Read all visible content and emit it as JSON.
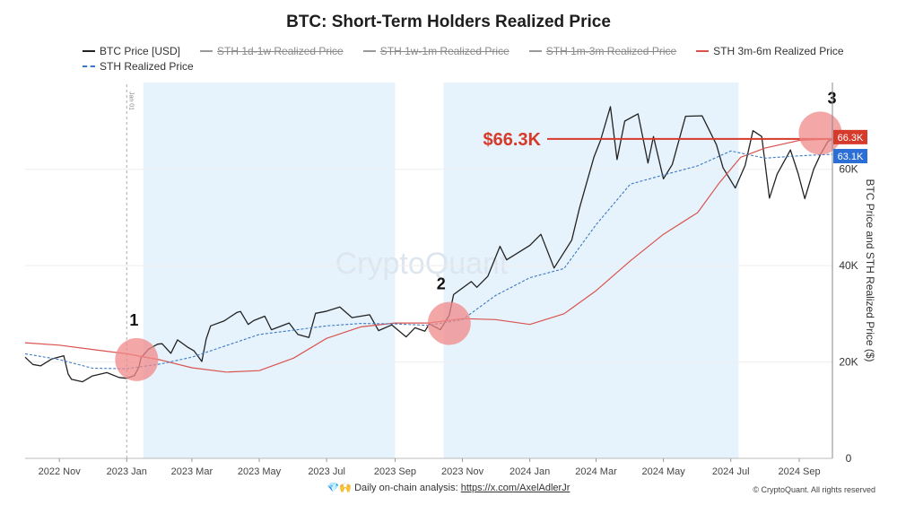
{
  "title": "BTC: Short-Term Holders Realized Price",
  "legend": [
    {
      "label": "BTC Price [USD]",
      "color": "#222222",
      "style": "solid",
      "active": true
    },
    {
      "label": "STH 1d-1w Realized Price",
      "color": "#9a9a9a",
      "style": "solid",
      "active": false
    },
    {
      "label": "STH 1w-1m Realized Price",
      "color": "#9a9a9a",
      "style": "solid",
      "active": false
    },
    {
      "label": "STH 1m-3m Realized Price",
      "color": "#9a9a9a",
      "style": "solid",
      "active": false
    },
    {
      "label": "STH 3m-6m Realized Price",
      "color": "#d9534f",
      "style": "solid",
      "active": true
    },
    {
      "label": "STH Realized Price",
      "color": "#3b78c2",
      "style": "dashed",
      "active": true
    }
  ],
  "watermark": "CryptoQuant",
  "markers": {
    "vline_label": "Jan 01",
    "circle_labels": [
      "1",
      "2",
      "3"
    ],
    "price_annotation": "$66.3K"
  },
  "footer": {
    "icons": "💎🙌",
    "text": "Daily on-chain analysis:",
    "link": "https://x.com/AxelAdlerJr",
    "copyright": "© CryptoQuant. All rights reserved"
  },
  "colors": {
    "btc": "#222222",
    "sth_3m_6m": "#d9534f",
    "sth": "#3b78c2",
    "shade": "#e6f3fc",
    "circle": "#f08a8a",
    "annotation": "#d63a2a",
    "tag_red": "#d63a2a",
    "tag_blue": "#2b6fd6"
  },
  "chart_data": {
    "type": "line",
    "title": "BTC: Short-Term Holders Realized Price",
    "xlabel": "",
    "ylabel": "BTC Price and STH Realized Price ($)",
    "x_range": [
      "2022-10-01",
      "2024-10-01"
    ],
    "ylim": [
      0,
      78000
    ],
    "yticks": [
      0,
      20000,
      40000,
      60000
    ],
    "ytick_labels": [
      "0",
      "20K",
      "40K",
      "60K"
    ],
    "xticks": [
      "2022-11-01",
      "2023-01-01",
      "2023-03-01",
      "2023-05-01",
      "2023-07-01",
      "2023-09-01",
      "2023-11-01",
      "2024-01-01",
      "2024-03-01",
      "2024-05-01",
      "2024-07-01",
      "2024-09-01"
    ],
    "xtick_labels": [
      "2022 Nov",
      "2023 Jan",
      "2023 Mar",
      "2023 May",
      "2023 Jul",
      "2023 Sep",
      "2023 Nov",
      "2024 Jan",
      "2024 Mar",
      "2024 May",
      "2024 Jul",
      "2024 Sep"
    ],
    "shaded_regions": [
      [
        "2023-01-16",
        "2023-09-01"
      ],
      [
        "2023-10-15",
        "2024-07-08"
      ]
    ],
    "vertical_line": "2023-01-01",
    "horizontal_line": 66300,
    "value_tags": [
      {
        "label": "66.3K",
        "value": 66300,
        "color": "#d63a2a"
      },
      {
        "label": "63.1K",
        "value": 63100,
        "color": "#2b6fd6"
      }
    ],
    "highlight_points": [
      {
        "label": "1",
        "date": "2023-01-10",
        "value": 20500
      },
      {
        "label": "2",
        "date": "2023-10-20",
        "value": 28000
      },
      {
        "label": "3",
        "date": "2024-09-20",
        "value": 67500
      }
    ],
    "series": [
      {
        "name": "BTC Price [USD]",
        "color": "#222222",
        "points": [
          [
            "2022-10-01",
            21000
          ],
          [
            "2022-10-08",
            19500
          ],
          [
            "2022-10-15",
            19200
          ],
          [
            "2022-10-25",
            20600
          ],
          [
            "2022-11-05",
            21300
          ],
          [
            "2022-11-09",
            17500
          ],
          [
            "2022-11-12",
            16400
          ],
          [
            "2022-11-22",
            15900
          ],
          [
            "2022-12-01",
            17100
          ],
          [
            "2022-12-14",
            17800
          ],
          [
            "2022-12-25",
            16800
          ],
          [
            "2023-01-01",
            16600
          ],
          [
            "2023-01-08",
            17200
          ],
          [
            "2023-01-12",
            18900
          ],
          [
            "2023-01-14",
            20900
          ],
          [
            "2023-01-21",
            22700
          ],
          [
            "2023-01-29",
            23700
          ],
          [
            "2023-02-02",
            23800
          ],
          [
            "2023-02-10",
            21800
          ],
          [
            "2023-02-16",
            24600
          ],
          [
            "2023-02-25",
            23100
          ],
          [
            "2023-03-03",
            22300
          ],
          [
            "2023-03-10",
            20100
          ],
          [
            "2023-03-14",
            24800
          ],
          [
            "2023-03-18",
            27500
          ],
          [
            "2023-03-30",
            28500
          ],
          [
            "2023-04-11",
            30300
          ],
          [
            "2023-04-14",
            30500
          ],
          [
            "2023-04-21",
            27800
          ],
          [
            "2023-04-26",
            28600
          ],
          [
            "2023-05-06",
            29500
          ],
          [
            "2023-05-12",
            26700
          ],
          [
            "2023-05-28",
            28100
          ],
          [
            "2023-06-05",
            25700
          ],
          [
            "2023-06-15",
            25100
          ],
          [
            "2023-06-21",
            30100
          ],
          [
            "2023-06-30",
            30500
          ],
          [
            "2023-07-13",
            31400
          ],
          [
            "2023-07-24",
            29200
          ],
          [
            "2023-08-09",
            29800
          ],
          [
            "2023-08-17",
            26500
          ],
          [
            "2023-08-29",
            27700
          ],
          [
            "2023-09-11",
            25200
          ],
          [
            "2023-09-19",
            27100
          ],
          [
            "2023-09-28",
            26400
          ],
          [
            "2023-10-02",
            27900
          ],
          [
            "2023-10-12",
            26700
          ],
          [
            "2023-10-20",
            29700
          ],
          [
            "2023-10-24",
            34000
          ],
          [
            "2023-11-09",
            36700
          ],
          [
            "2023-11-14",
            35500
          ],
          [
            "2023-11-24",
            37800
          ],
          [
            "2023-12-05",
            44000
          ],
          [
            "2023-12-11",
            41200
          ],
          [
            "2024-01-01",
            44200
          ],
          [
            "2024-01-11",
            46500
          ],
          [
            "2024-01-23",
            39500
          ],
          [
            "2024-02-08",
            45300
          ],
          [
            "2024-02-15",
            52000
          ],
          [
            "2024-02-28",
            62500
          ],
          [
            "2024-03-05",
            66000
          ],
          [
            "2024-03-14",
            73000
          ],
          [
            "2024-03-20",
            62000
          ],
          [
            "2024-03-27",
            70000
          ],
          [
            "2024-04-08",
            71500
          ],
          [
            "2024-04-17",
            61300
          ],
          [
            "2024-04-22",
            66800
          ],
          [
            "2024-05-01",
            58000
          ],
          [
            "2024-05-09",
            61000
          ],
          [
            "2024-05-21",
            71000
          ],
          [
            "2024-06-05",
            71100
          ],
          [
            "2024-06-18",
            65100
          ],
          [
            "2024-06-24",
            60300
          ],
          [
            "2024-07-05",
            56100
          ],
          [
            "2024-07-14",
            60800
          ],
          [
            "2024-07-21",
            68000
          ],
          [
            "2024-07-29",
            66800
          ],
          [
            "2024-08-05",
            54000
          ],
          [
            "2024-08-12",
            59000
          ],
          [
            "2024-08-24",
            64000
          ],
          [
            "2024-08-31",
            59100
          ],
          [
            "2024-09-06",
            53900
          ],
          [
            "2024-09-14",
            60000
          ],
          [
            "2024-09-20",
            63000
          ],
          [
            "2024-09-27",
            65800
          ],
          [
            "2024-10-01",
            66300
          ]
        ]
      },
      {
        "name": "STH 3m-6m Realized Price",
        "color": "#d9534f",
        "points": [
          [
            "2022-10-01",
            24000
          ],
          [
            "2022-11-01",
            23500
          ],
          [
            "2022-12-01",
            22600
          ],
          [
            "2023-01-01",
            21700
          ],
          [
            "2023-02-01",
            20400
          ],
          [
            "2023-03-01",
            18800
          ],
          [
            "2023-04-01",
            17900
          ],
          [
            "2023-05-01",
            18200
          ],
          [
            "2023-06-01",
            20800
          ],
          [
            "2023-07-01",
            24900
          ],
          [
            "2023-08-01",
            27300
          ],
          [
            "2023-09-01",
            28100
          ],
          [
            "2023-10-01",
            28100
          ],
          [
            "2023-11-01",
            29000
          ],
          [
            "2023-12-01",
            28800
          ],
          [
            "2024-01-01",
            27800
          ],
          [
            "2024-02-01",
            30000
          ],
          [
            "2024-03-01",
            34800
          ],
          [
            "2024-04-01",
            41000
          ],
          [
            "2024-05-01",
            46500
          ],
          [
            "2024-06-01",
            51000
          ],
          [
            "2024-06-20",
            57000
          ],
          [
            "2024-07-10",
            62500
          ],
          [
            "2024-08-01",
            64400
          ],
          [
            "2024-09-01",
            66000
          ],
          [
            "2024-10-01",
            66300
          ]
        ]
      },
      {
        "name": "STH Realized Price",
        "color": "#3b78c2",
        "points": [
          [
            "2022-10-01",
            21700
          ],
          [
            "2022-11-01",
            20500
          ],
          [
            "2022-12-01",
            18700
          ],
          [
            "2023-01-01",
            18600
          ],
          [
            "2023-02-01",
            19600
          ],
          [
            "2023-03-01",
            21000
          ],
          [
            "2023-04-01",
            23400
          ],
          [
            "2023-05-01",
            25700
          ],
          [
            "2023-06-01",
            26600
          ],
          [
            "2023-07-01",
            27500
          ],
          [
            "2023-08-01",
            28000
          ],
          [
            "2023-09-01",
            27900
          ],
          [
            "2023-10-01",
            27600
          ],
          [
            "2023-11-01",
            28800
          ],
          [
            "2023-12-01",
            33800
          ],
          [
            "2024-01-01",
            37500
          ],
          [
            "2024-02-01",
            39400
          ],
          [
            "2024-03-01",
            48500
          ],
          [
            "2024-04-01",
            56900
          ],
          [
            "2024-05-01",
            58800
          ],
          [
            "2024-06-01",
            60700
          ],
          [
            "2024-07-01",
            63800
          ],
          [
            "2024-08-01",
            62300
          ],
          [
            "2024-09-01",
            62800
          ],
          [
            "2024-10-01",
            63100
          ]
        ]
      }
    ]
  }
}
